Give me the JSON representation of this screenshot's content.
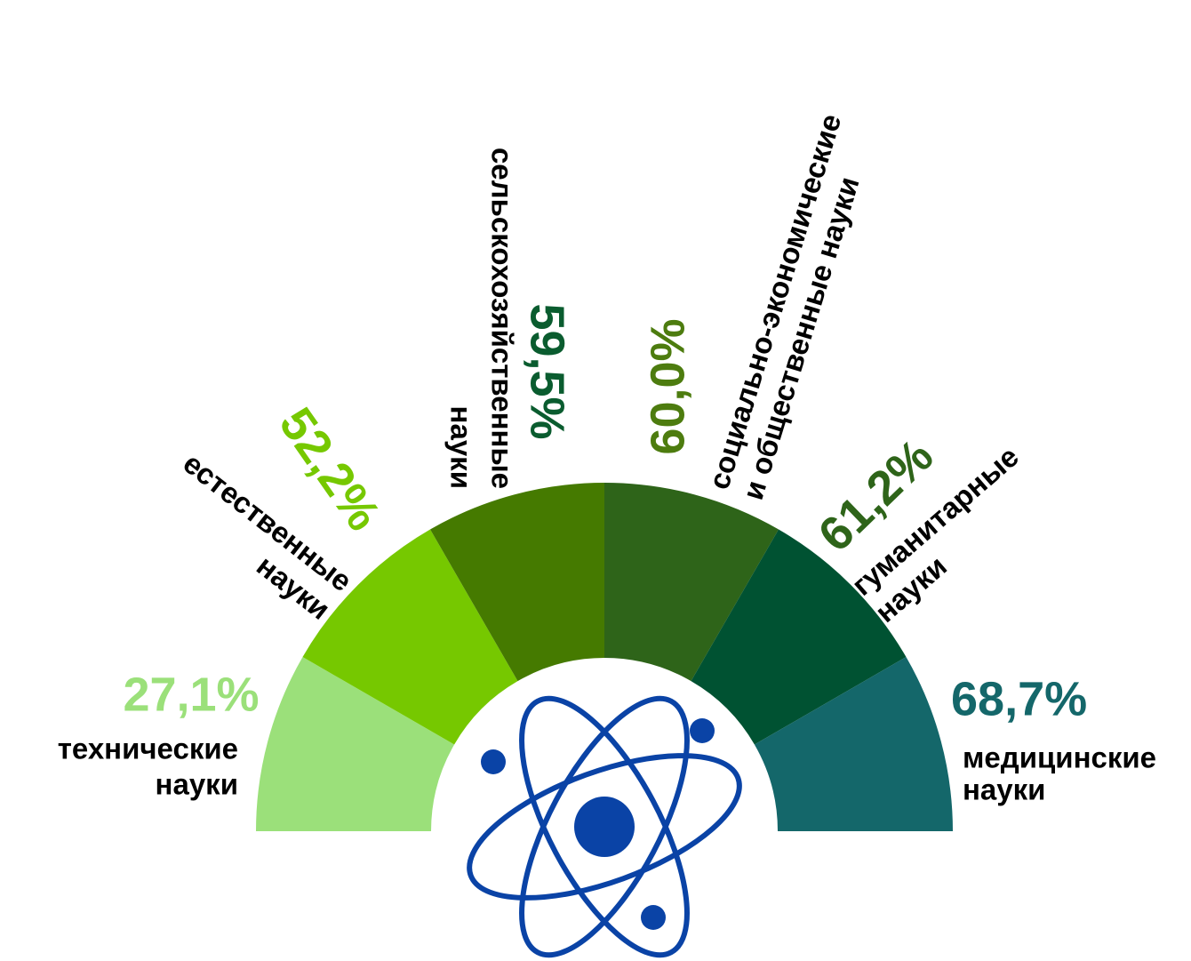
{
  "chart_data": {
    "type": "fan",
    "categories": [
      [
        "технические",
        "науки"
      ],
      [
        "естественные",
        "науки"
      ],
      [
        "сельскохозяйственные",
        "науки"
      ],
      [
        "социально-экономические",
        "и общественные науки"
      ],
      [
        "гуманитарные",
        "науки"
      ],
      [
        "медицинские",
        "науки"
      ]
    ],
    "values": [
      27.1,
      52.2,
      59.5,
      60.0,
      61.2,
      68.7
    ],
    "value_labels": [
      "27,1%",
      "52,2%",
      "59,5%",
      "60,0%",
      "61,2%",
      "68,7%"
    ],
    "colors": [
      "#9be07a",
      "#76c800",
      "#457a00",
      "#2e6419",
      "#005232",
      "#14676a"
    ],
    "label_colors": [
      "#9be07a",
      "#76c800",
      "#0a5c2f",
      "#4d7c0f",
      "#2e6419",
      "#14676a"
    ]
  }
}
